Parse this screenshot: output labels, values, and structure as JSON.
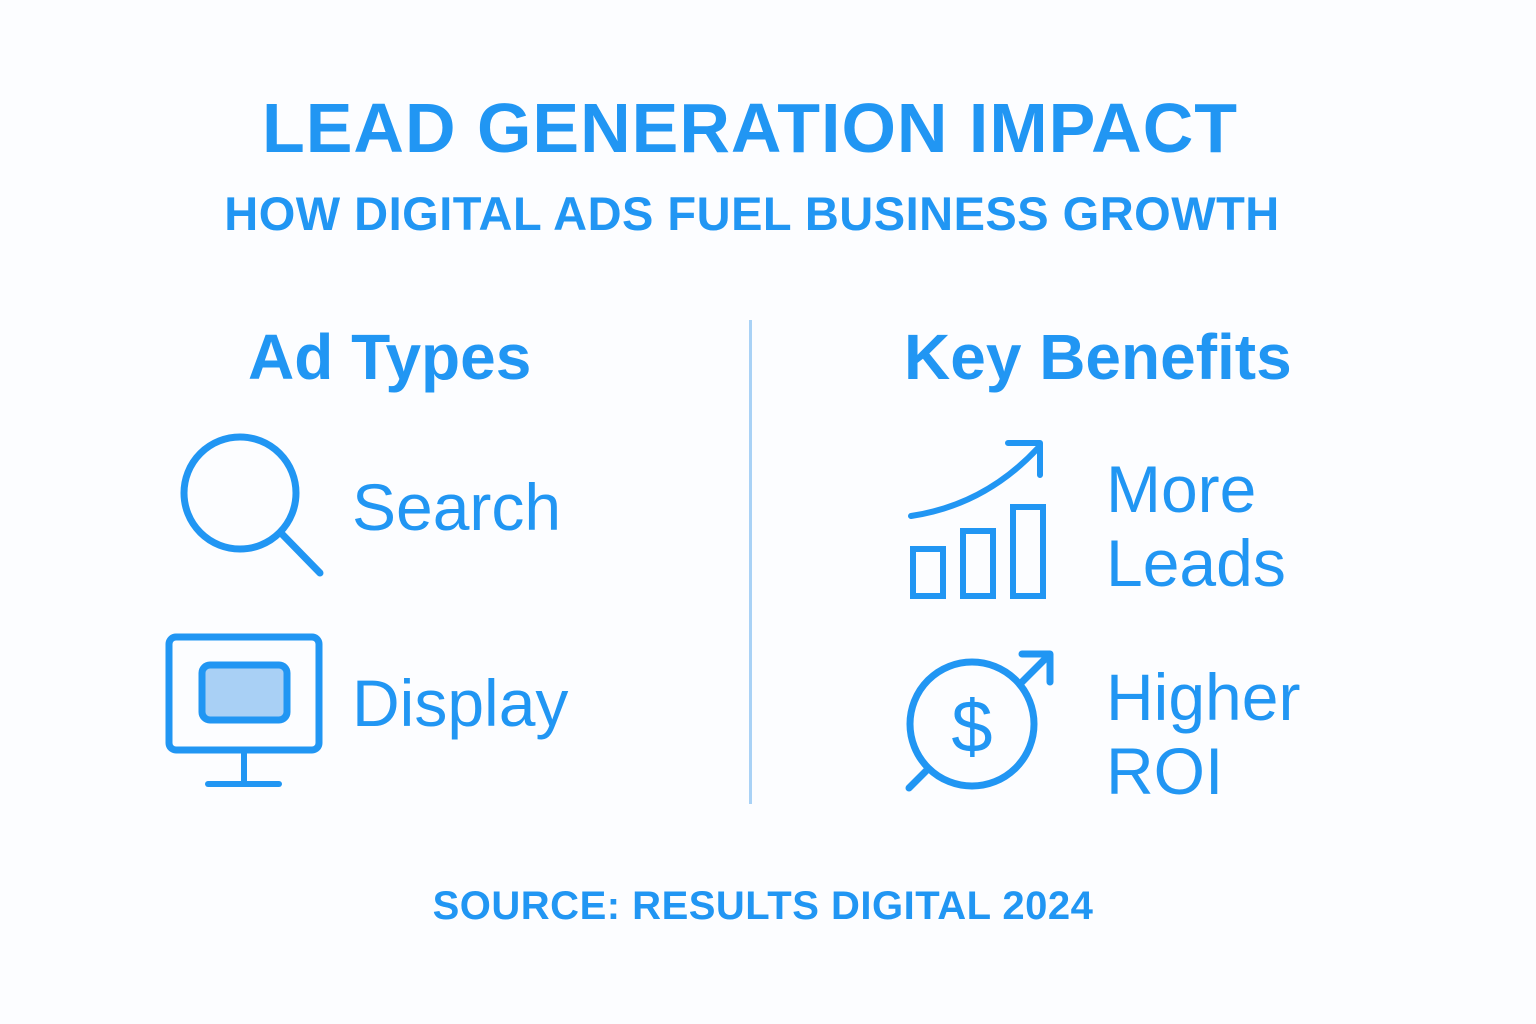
{
  "title": "LEAD GENERATION IMPACT",
  "subtitle": "HOW DIGITAL ADS FUEL BUSINESS GROWTH",
  "ad_types": {
    "heading": "Ad Types",
    "items": [
      {
        "label": "Search",
        "icon": "magnifier-icon"
      },
      {
        "label": "Display",
        "icon": "monitor-icon"
      }
    ]
  },
  "key_benefits": {
    "heading": "Key Benefits",
    "items": [
      {
        "label_line1": "More",
        "label_line2": "Leads",
        "icon": "bar-chart-growth-icon"
      },
      {
        "label_line1": "Higher",
        "label_line2": "ROI",
        "icon": "dollar-arrow-icon"
      }
    ]
  },
  "source": "SOURCE: RESULTS DIGITAL 2024",
  "colors": {
    "accent": "#2196f3",
    "divider": "#a9d2f6",
    "screen_fill": "#a9d0f5",
    "background": "#fcfdff"
  }
}
